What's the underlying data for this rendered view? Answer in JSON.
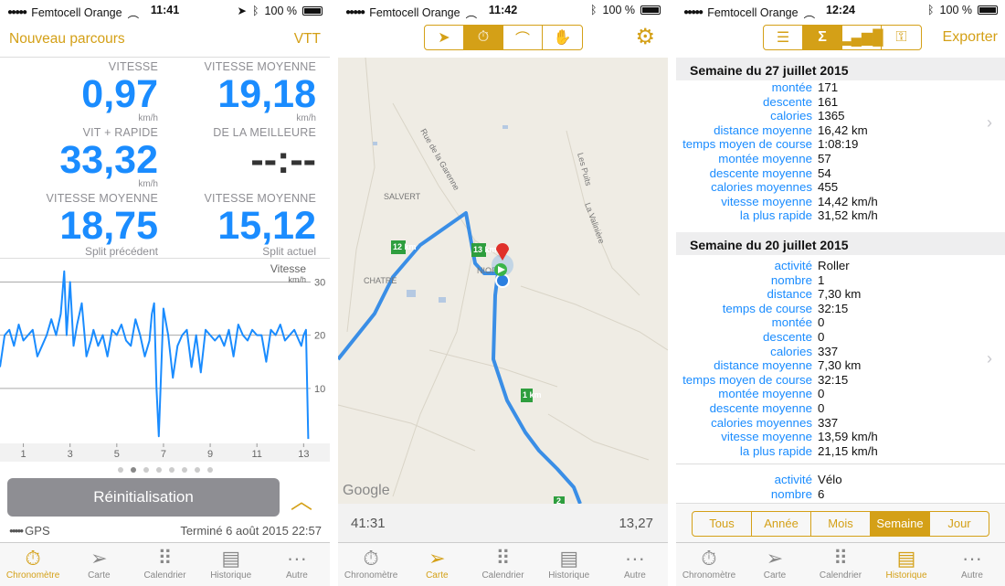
{
  "colors": {
    "accent": "#d4a017",
    "blue": "#1a8cff",
    "gray": "#8e8e93"
  },
  "s1": {
    "status": {
      "carrier": "Femtocell Orange",
      "time": "11:41",
      "battery": "100 %"
    },
    "nav_left": "Nouveau parcours",
    "nav_right": "VTT",
    "stats": [
      {
        "label": "VITESSE",
        "value": "0,97",
        "unit": "km/h"
      },
      {
        "label": "VITESSE MOYENNE",
        "value": "19,18",
        "unit": "km/h"
      },
      {
        "label": "VIT + RAPIDE",
        "value": "33,32",
        "unit": "km/h"
      },
      {
        "label": "DE LA MEILLEURE",
        "value": "--:--",
        "unit": ""
      },
      {
        "label": "VITESSE MOYENNE",
        "value": "18,75",
        "unit": "Split précédent"
      },
      {
        "label": "VITESSE MOYENNE",
        "value": "15,12",
        "unit": "Split actuel"
      }
    ],
    "chart_data": {
      "type": "line",
      "title": "Vitesse",
      "ylabel": "km/h",
      "ylim": [
        0,
        33
      ],
      "xlim": [
        0,
        13.3
      ],
      "y_ticks": [
        "30",
        "20",
        "10"
      ],
      "x_ticks": [
        "1",
        "3",
        "5",
        "7",
        "9",
        "11",
        "13"
      ],
      "x": [
        0,
        0.2,
        0.4,
        0.6,
        0.8,
        1.0,
        1.2,
        1.4,
        1.6,
        1.8,
        2.0,
        2.2,
        2.4,
        2.6,
        2.75,
        2.85,
        3.0,
        3.15,
        3.3,
        3.5,
        3.7,
        3.9,
        4.0,
        4.2,
        4.4,
        4.6,
        4.8,
        5.0,
        5.2,
        5.4,
        5.6,
        5.8,
        6.0,
        6.2,
        6.4,
        6.5,
        6.6,
        6.7,
        6.8,
        7.0,
        7.2,
        7.4,
        7.6,
        7.8,
        8.0,
        8.2,
        8.4,
        8.6,
        8.8,
        9.0,
        9.2,
        9.4,
        9.6,
        9.8,
        10.0,
        10.2,
        10.4,
        10.6,
        10.8,
        11.0,
        11.2,
        11.4,
        11.6,
        11.8,
        12.0,
        12.2,
        12.4,
        12.6,
        12.8,
        12.9,
        13.0,
        13.1,
        13.2
      ],
      "values": [
        14,
        20,
        21,
        18,
        22,
        19,
        20,
        21,
        16,
        18,
        20,
        23,
        20,
        24,
        32,
        20,
        30,
        18,
        22,
        26,
        16,
        19,
        21,
        18,
        20,
        16,
        21,
        20,
        22,
        19,
        18,
        23,
        20,
        16,
        19,
        24,
        26,
        10,
        1,
        25,
        20,
        12,
        18,
        20,
        21,
        14,
        20,
        13,
        21,
        20,
        19,
        20,
        18,
        21,
        16,
        22,
        20,
        19,
        21,
        20,
        20,
        15,
        21,
        20,
        22,
        19,
        20,
        21,
        19,
        18,
        20,
        21,
        0.5
      ],
      "pager_total": 8,
      "pager_active": 1
    },
    "reset_label": "Réinitialisation",
    "gps_label": "GPS",
    "finished": "Terminé 6 août 2015 22:57"
  },
  "s2": {
    "status": {
      "carrier": "Femtocell Orange",
      "time": "11:42",
      "battery": "100 %"
    },
    "map_labels": [
      "Rue de la Garenne",
      "Les Puits",
      "La Valinière",
      "SALVERT",
      "CHATRE",
      "NIORT",
      "Google"
    ],
    "markers": [
      "12 km",
      "13 km",
      "1 km",
      "2"
    ],
    "elapsed": "41:31",
    "distance": "13,27"
  },
  "s3": {
    "status": {
      "carrier": "Femtocell Orange",
      "time": "12:24",
      "battery": "100 %"
    },
    "export": "Exporter",
    "week1": {
      "title": "Semaine du 27 juillet 2015",
      "rows": [
        [
          "montée",
          "171"
        ],
        [
          "descente",
          "161"
        ],
        [
          "calories",
          "1365"
        ],
        [
          "distance moyenne",
          "16,42 km"
        ],
        [
          "temps moyen de course",
          "1:08:19"
        ],
        [
          "montée moyenne",
          "57"
        ],
        [
          "descente moyenne",
          "54"
        ],
        [
          "calories moyennes",
          "455"
        ],
        [
          "vitesse moyenne",
          "14,42 km/h"
        ],
        [
          "la plus rapide",
          "31,52 km/h"
        ]
      ]
    },
    "week2": {
      "title": "Semaine du 20 juillet 2015",
      "rows": [
        [
          "activité",
          "Roller"
        ],
        [
          "nombre",
          "1"
        ],
        [
          "distance",
          "7,30 km"
        ],
        [
          "temps de course",
          "32:15"
        ],
        [
          "montée",
          "0"
        ],
        [
          "descente",
          "0"
        ],
        [
          "calories",
          "337"
        ],
        [
          "distance moyenne",
          "7,30 km"
        ],
        [
          "temps moyen de course",
          "32:15"
        ],
        [
          "montée moyenne",
          "0"
        ],
        [
          "descente moyenne",
          "0"
        ],
        [
          "calories moyennes",
          "337"
        ],
        [
          "vitesse moyenne",
          "13,59 km/h"
        ],
        [
          "la plus rapide",
          "21,15 km/h"
        ]
      ]
    },
    "week2b": {
      "rows": [
        [
          "activité",
          "Vélo"
        ],
        [
          "nombre",
          "6"
        ]
      ]
    },
    "filters": [
      "Tous",
      "Année",
      "Mois",
      "Semaine",
      "Jour"
    ],
    "filter_active": 3
  },
  "tabs": [
    "Chronomètre",
    "Carte",
    "Calendrier",
    "Historique",
    "Autre"
  ]
}
